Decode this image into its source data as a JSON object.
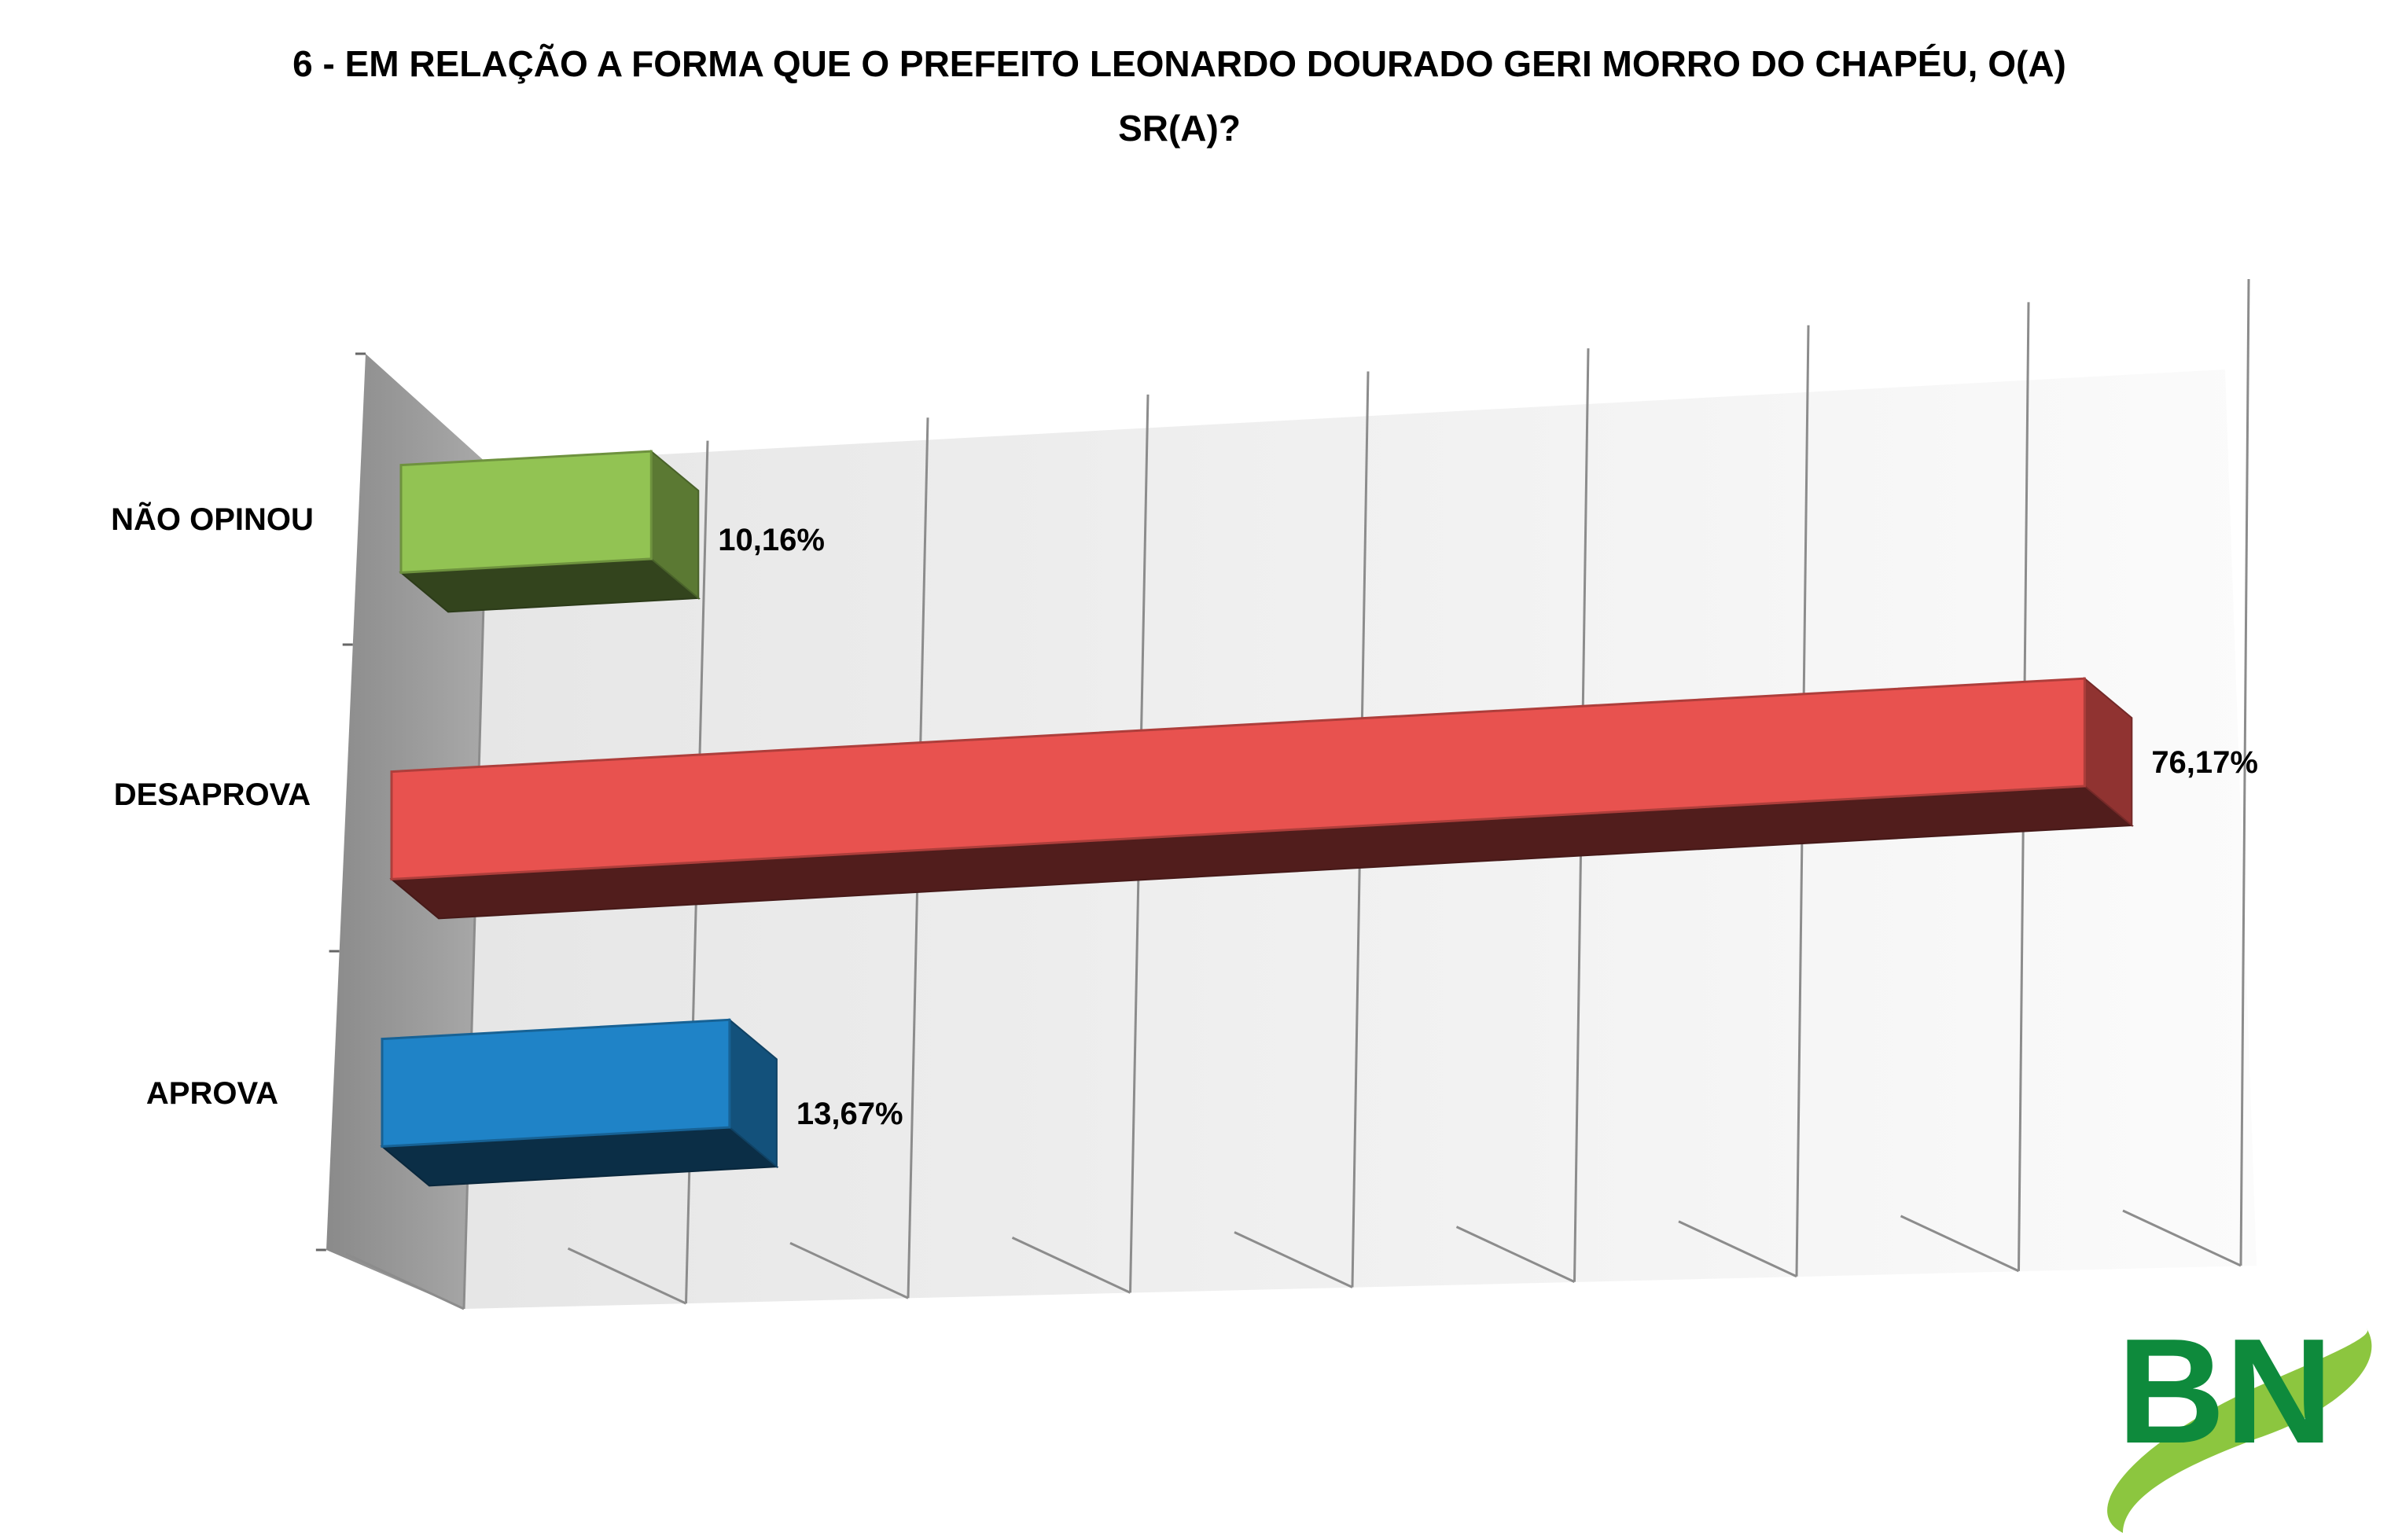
{
  "chart_data": {
    "type": "bar",
    "orientation": "horizontal",
    "style": "3d",
    "title": "6 - EM RELAÇÃO A FORMA QUE O PREFEITO LEONARDO DOURADO GERI MORRO DO CHAPÉU, O(A) SR(A)?",
    "categories": [
      "NÃO OPINOU",
      "DESAPROVA",
      "APROVA"
    ],
    "values": [
      10.16,
      76.17,
      13.67
    ],
    "value_labels": [
      "10,16%",
      "76,17%",
      "13,67%"
    ],
    "colors": [
      "#92C353",
      "#E8524F",
      "#1F83C7"
    ],
    "xlim": [
      0,
      80
    ],
    "grid": true,
    "legend": false
  },
  "logo": {
    "text": "BN",
    "colors": [
      "#0E8A3C",
      "#8CC63F"
    ]
  }
}
